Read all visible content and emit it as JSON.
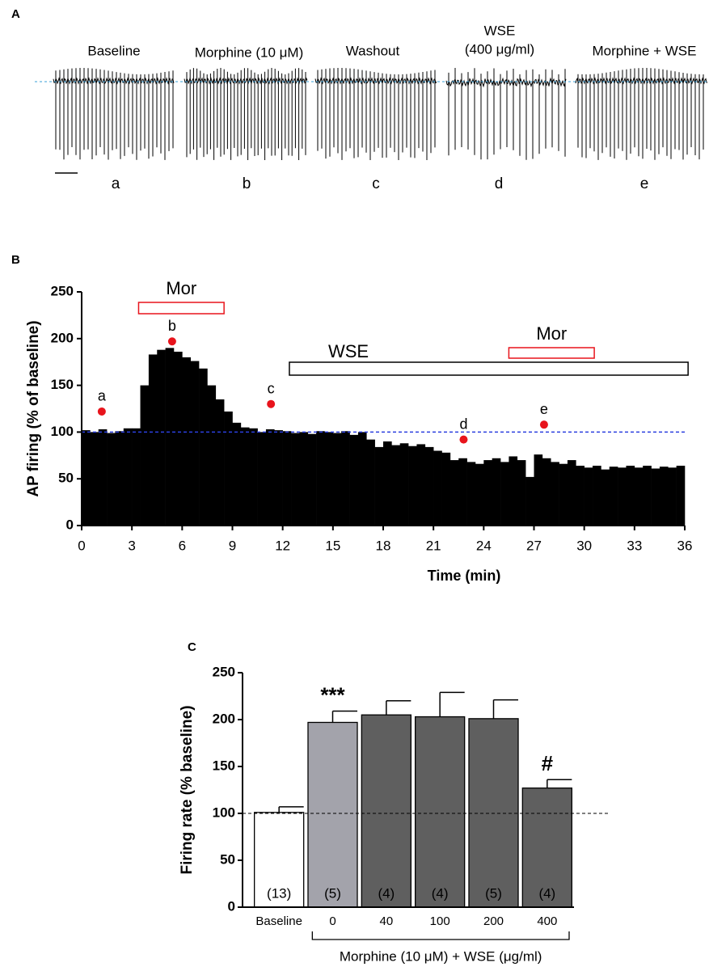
{
  "panel_a": {
    "panel_label": "A",
    "conditions": [
      "Baseline",
      "Morphine (10 μM)",
      "Washout",
      "WSE",
      "Morphine + WSE"
    ],
    "wse_concentration": "(400 μg/ml)",
    "letters": [
      "a",
      "b",
      "c",
      "d",
      "e"
    ]
  },
  "chart_data": [
    {
      "type": "histogram",
      "panel_label": "B",
      "xlabel": "Time (min)",
      "ylabel": "AP firing (% of baseline)",
      "bins": [
        0,
        0.5,
        1,
        1.5,
        2,
        2.5,
        3,
        3.5,
        4,
        4.5,
        5,
        5.5,
        6,
        6.5,
        7,
        7.5,
        8,
        8.5,
        9,
        9.5,
        10,
        10.5,
        11,
        11.5,
        12,
        12.5,
        13,
        13.5,
        14,
        14.5,
        15,
        15.5,
        16,
        16.5,
        17,
        17.5,
        18,
        18.5,
        19,
        19.5,
        20,
        20.5,
        21,
        21.5,
        22,
        22.5,
        23,
        23.5,
        24,
        24.5,
        25,
        25.5,
        26,
        26.5,
        27,
        27.5,
        28,
        28.5,
        29,
        29.5,
        30,
        30.5,
        31,
        31.5,
        32,
        32.5,
        33,
        33.5,
        34,
        34.5,
        35,
        35.5,
        36
      ],
      "values": [
        102,
        100,
        103,
        99,
        101,
        104,
        104,
        150,
        183,
        188,
        190,
        186,
        180,
        176,
        168,
        150,
        135,
        122,
        110,
        105,
        104,
        100,
        103,
        102,
        101,
        99,
        100,
        98,
        101,
        100,
        99,
        101,
        97,
        100,
        92,
        84,
        90,
        86,
        88,
        85,
        87,
        84,
        80,
        78,
        70,
        72,
        68,
        66,
        70,
        72,
        68,
        74,
        70,
        52,
        76,
        72,
        68,
        66,
        70,
        64,
        62,
        64,
        60,
        63,
        62,
        64,
        62,
        64,
        61,
        63,
        62,
        64
      ],
      "color": "#000000",
      "xlim": [
        0,
        36
      ],
      "ylim": [
        0,
        250
      ],
      "xticks": [
        0,
        3,
        6,
        9,
        12,
        15,
        18,
        21,
        24,
        27,
        30,
        33,
        36
      ],
      "yticks": [
        0,
        50,
        100,
        150,
        200,
        250
      ],
      "reference_line": 100,
      "reference_color": "#2b3fe0",
      "markers": [
        {
          "label": "a",
          "x": 1.2,
          "y": 122
        },
        {
          "label": "b",
          "x": 5.4,
          "y": 197
        },
        {
          "label": "c",
          "x": 11.3,
          "y": 130
        },
        {
          "label": "d",
          "x": 22.8,
          "y": 92
        },
        {
          "label": "e",
          "x": 27.6,
          "y": 108
        }
      ],
      "marker_color": "#e8141c",
      "spans": [
        {
          "label": "Mor",
          "x": [
            3.4,
            8.5
          ],
          "color": "#e8141c"
        },
        {
          "label": "WSE",
          "x": [
            12.4,
            36.2
          ],
          "color": "#000000"
        },
        {
          "label": "Mor",
          "x": [
            25.5,
            30.6
          ],
          "color": "#e8141c"
        }
      ]
    },
    {
      "type": "bar",
      "panel_label": "C",
      "ylabel": "Firing rate (% baseline)",
      "categories": [
        "Baseline",
        "0",
        "40",
        "100",
        "200",
        "400"
      ],
      "values": [
        101,
        197,
        205,
        203,
        201,
        127
      ],
      "errors": [
        6,
        12,
        15,
        26,
        20,
        9
      ],
      "colors": [
        "#ffffff",
        "#a3a3ab",
        "#5f5f5f",
        "#5f5f5f",
        "#5f5f5f",
        "#5f5f5f"
      ],
      "n_labels": [
        "(13)",
        "(5)",
        "(4)",
        "(4)",
        "(5)",
        "(4)"
      ],
      "significance": [
        null,
        "***",
        null,
        null,
        null,
        "#"
      ],
      "group_label": "Morphine (10 μM) + WSE (μg/ml)",
      "ylim": [
        0,
        250
      ],
      "yticks": [
        0,
        50,
        100,
        150,
        200,
        250
      ],
      "reference_line": 100,
      "reference_color": "#000000"
    }
  ]
}
